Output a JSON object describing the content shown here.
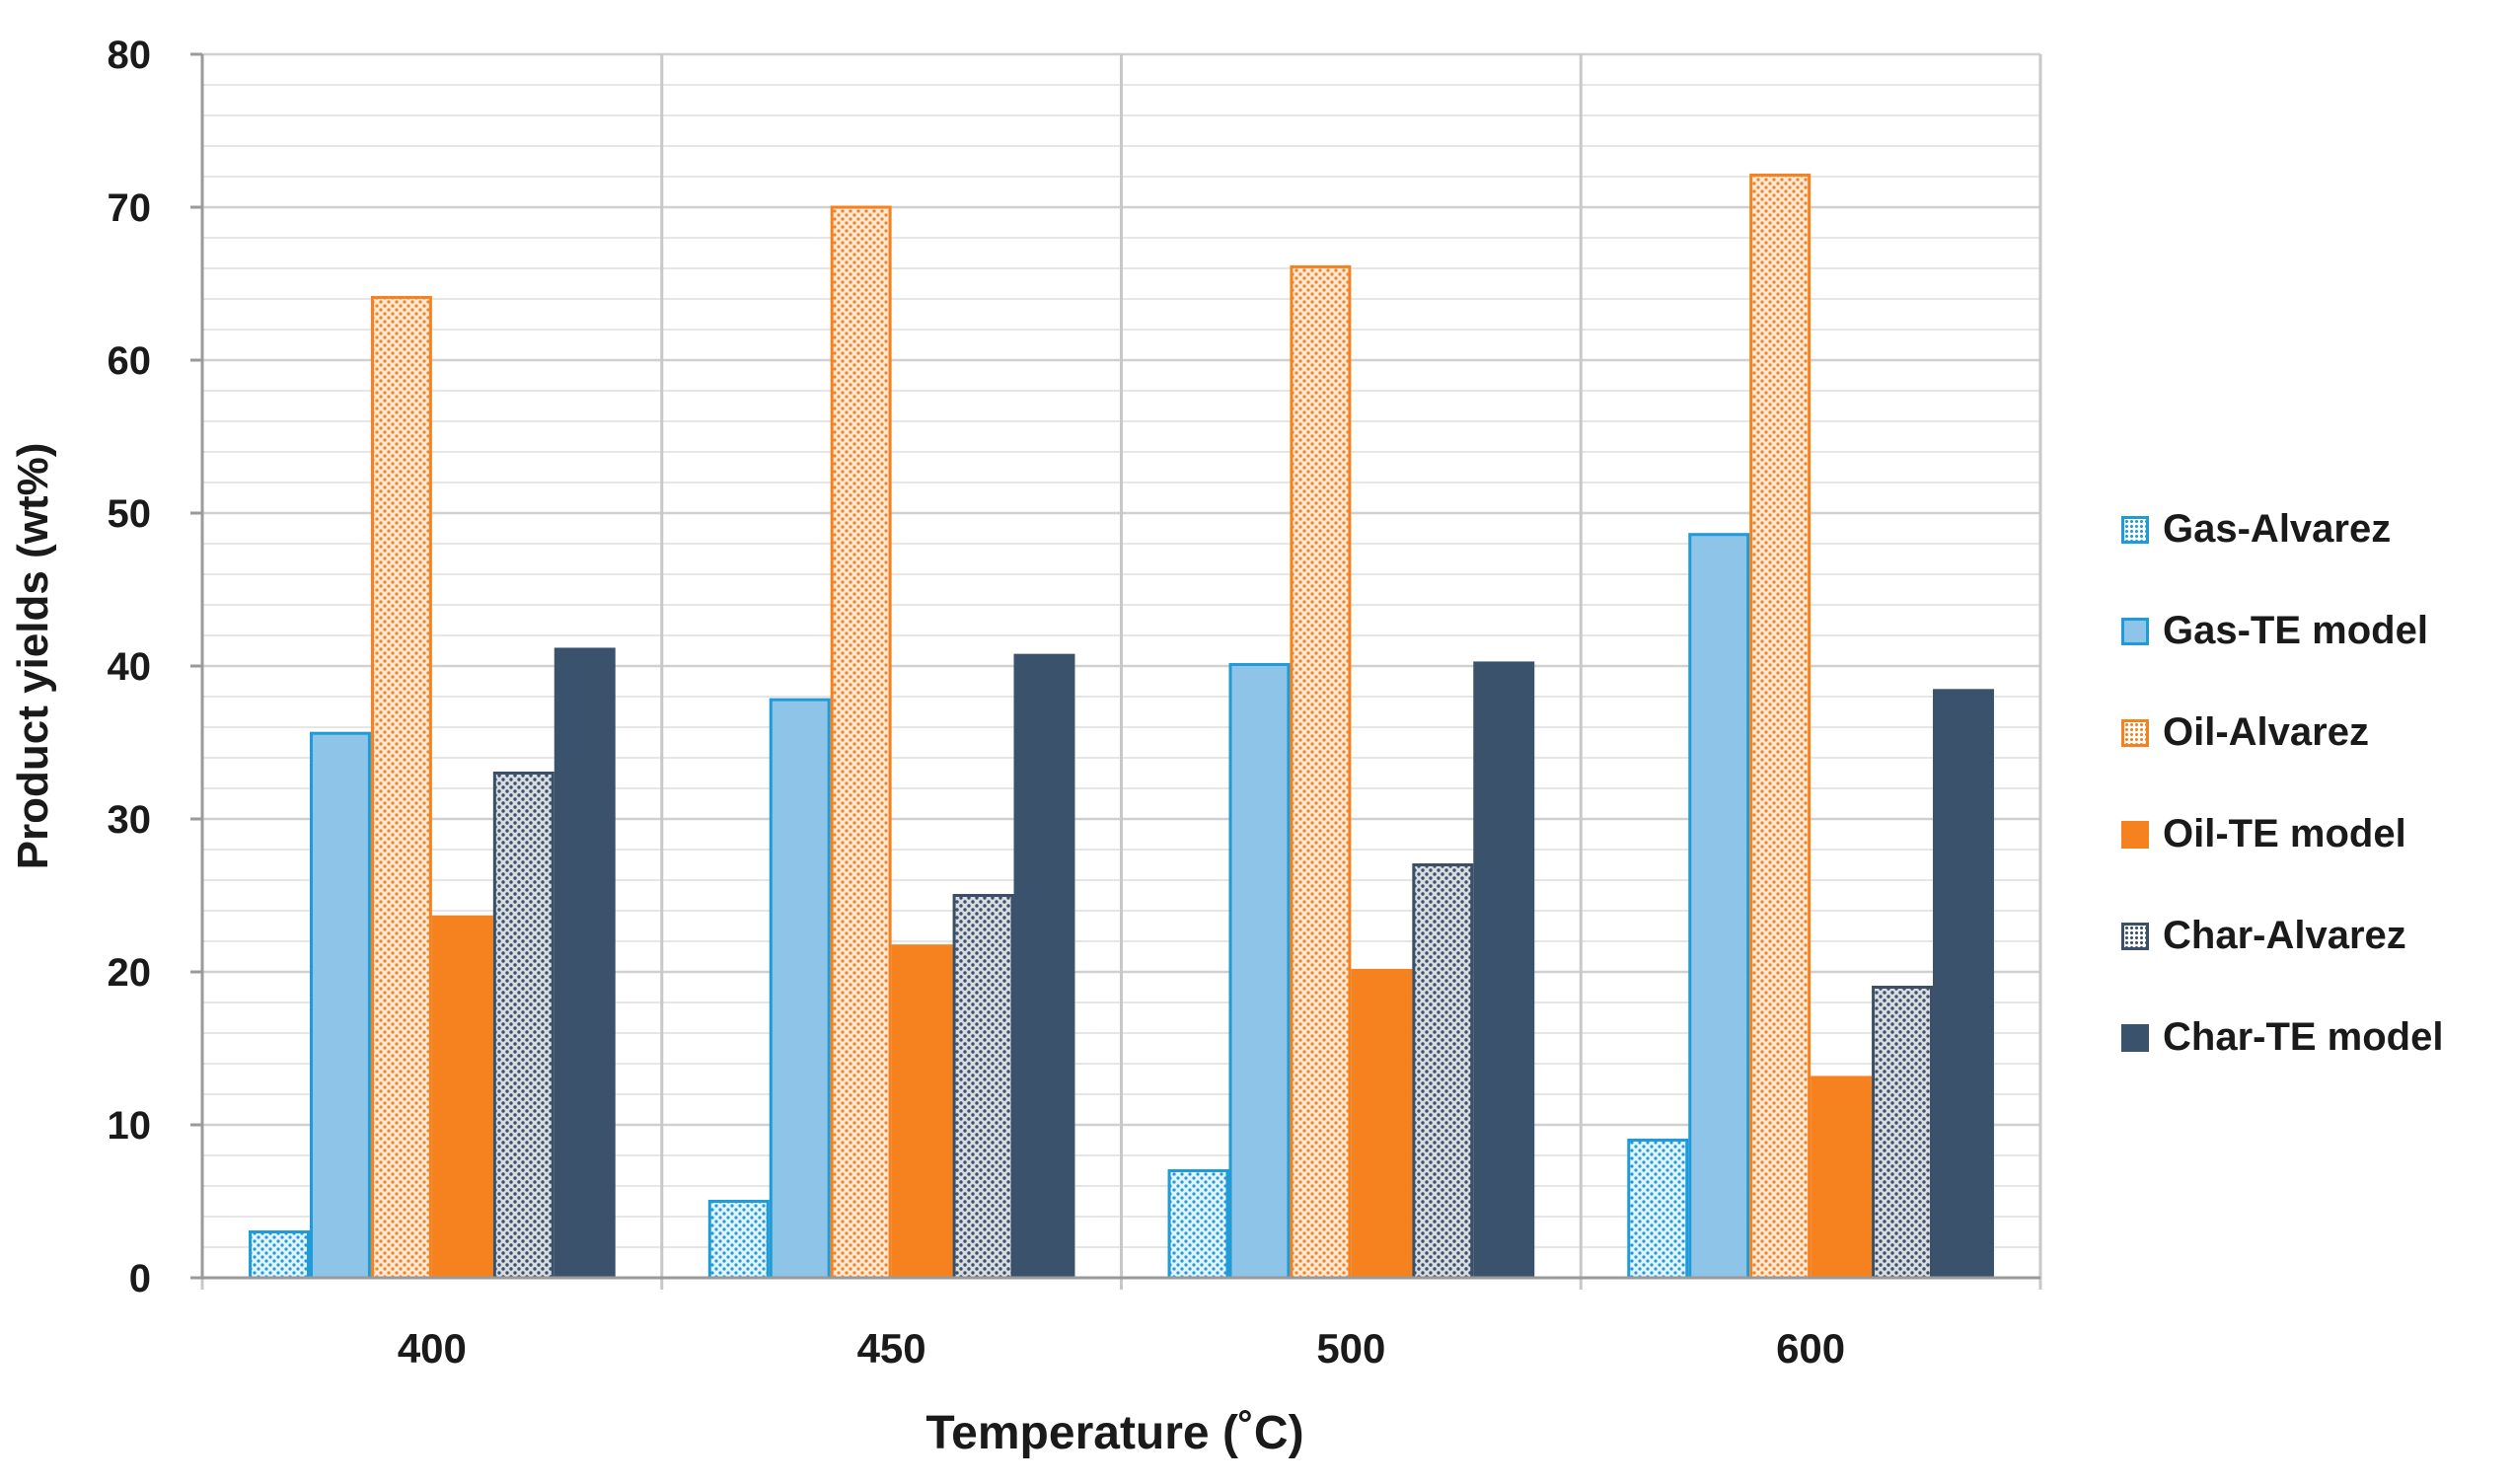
{
  "chart_data": {
    "type": "bar",
    "title": "",
    "xlabel": "Temperature (˚C)",
    "ylabel": "Product yields (wt%)",
    "ylim": [
      0,
      80
    ],
    "yticks": [
      "0",
      "10",
      "20",
      "30",
      "40",
      "50",
      "60",
      "70",
      "80"
    ],
    "categories": [
      "400",
      "450",
      "500",
      "600"
    ],
    "grid": true,
    "legend_position": "right",
    "series": [
      {
        "name": "Gas-Alvarez",
        "values": [
          3,
          5,
          7,
          9
        ],
        "fill": "#ffffff",
        "stroke": "#1f9bd7",
        "pattern": "dots-blue"
      },
      {
        "name": "Gas-TE model",
        "values": [
          35.6,
          37.8,
          40.1,
          48.6
        ],
        "fill": "#8ec4e8",
        "stroke": "#1f9bd7",
        "pattern": ""
      },
      {
        "name": "Oil-Alvarez",
        "values": [
          64.1,
          70,
          66.1,
          72.1
        ],
        "fill": "#ffffff",
        "stroke": "#f5821f",
        "pattern": "dots-orange"
      },
      {
        "name": "Oil-TE model",
        "values": [
          23.6,
          21.7,
          20.1,
          13.1
        ],
        "fill": "#f5821f",
        "stroke": "#f5821f",
        "pattern": ""
      },
      {
        "name": "Char-Alvarez",
        "values": [
          33,
          25,
          27,
          19
        ],
        "fill": "#ffffff",
        "stroke": "#3b5068",
        "pattern": "dots-dark"
      },
      {
        "name": "Char-TE model",
        "values": [
          41.1,
          40.7,
          40.2,
          38.4
        ],
        "fill": "#3a526b",
        "stroke": "#3a526b",
        "pattern": ""
      }
    ]
  }
}
